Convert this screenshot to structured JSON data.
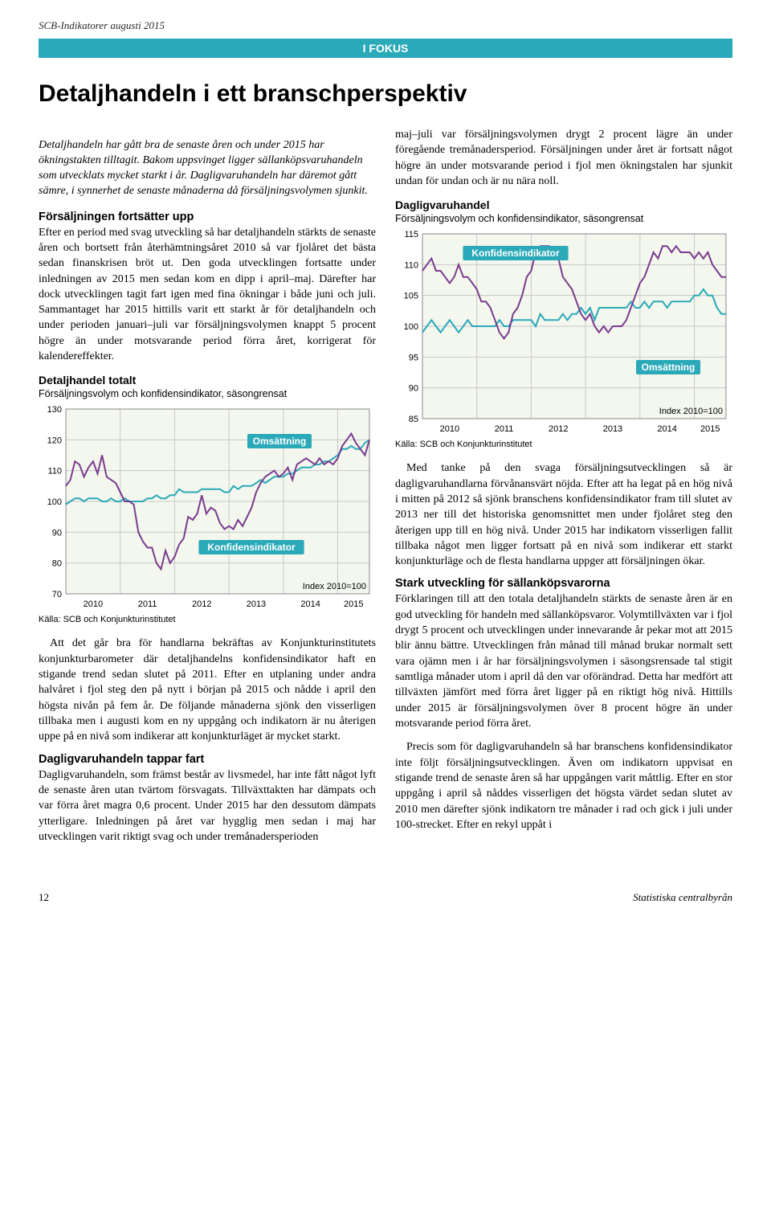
{
  "running_head": "SCB-Indikatorer augusti 2015",
  "fokus_label": "I FOKUS",
  "title": "Detaljhandeln i ett branschperspektiv",
  "footer": {
    "page_no": "12",
    "publisher": "Statistiska centralbyrån"
  },
  "left": {
    "intro": "Detaljhandeln har gått bra de senaste åren och under 2015 har ökningstakten tilltagit. Bakom uppsvinget ligger sällanköpsvaruhandeln som utvecklats mycket starkt i år. Dagligvaruhandeln har däremot gått sämre, i synnerhet de senaste månaderna då försäljningsvolymen sjunkit.",
    "h1": "Försäljningen fortsätter upp",
    "p1": "Efter en period med svag utveckling så har detaljhandeln stärkts de senaste åren och bortsett från återhämtningsåret 2010 så var fjolåret det bästa sedan finanskrisen bröt ut. Den goda utvecklingen fortsatte under inledningen av 2015 men sedan kom en dipp i april–maj. Därefter har dock utvecklingen tagit fart igen med fina ökningar i både juni och juli. Sammantaget har 2015 hittills varit ett starkt år för detaljhandeln och under perioden januari–juli var försäljningsvolymen knappt 5 procent högre än under motsvarande period förra året, korrigerat för kalendereffekter.",
    "p2": "Att det går bra för handlarna bekräftas av Konjunkturinstitutets konjunkturbarometer där detaljhandelns konfidensindikator haft en stigande trend sedan slutet på 2011. Efter en utplaning under andra halvåret i fjol steg den på nytt i början på 2015 och nådde i april den högsta nivån på fem år. De följande månaderna sjönk den visserligen tillbaka men i augusti kom en ny uppgång och indikatorn är nu återigen uppe på en nivå som indikerar att konjunkturläget är mycket starkt.",
    "h2": "Dagligvaruhandeln tappar fart",
    "p3": "Dagligvaruhandeln, som främst består av livsmedel, har inte fått något lyft de senaste åren utan tvärtom försvagats. Tillväxttakten har dämpats och var förra året magra 0,6 procent. Under 2015 har den dessutom dämpats ytterligare. Inledningen på året var hygglig men sedan i maj har utvecklingen varit riktigt svag och under tremånadersperioden"
  },
  "right": {
    "p0": "maj–juli var försäljningsvolymen drygt 2 procent lägre än under föregående tremånadersperiod. Försäljningen under året är fortsatt något högre än under motsvarande period i fjol men ökningstalen har sjunkit undan för undan och är nu nära noll.",
    "p1": "Med tanke på den svaga försäljningsutvecklingen så är dagligvaruhandlarna förvånansvärt nöjda. Efter att ha legat på en hög nivå i mitten på 2012 så sjönk branschens konfi­densindikator fram till slutet av 2013 ner till det historiska genomsnittet men under fjolåret steg den återigen upp till en hög nivå. Under 2015 har indikatorn visserligen fallit tillbaka något men ligger fortsatt på en nivå som indikerar ett starkt konjunkturläge och de flesta handlarna uppger att försäljningen ökar.",
    "h1": "Stark utveckling för sällanköpsvarorna",
    "p2": "Förklaringen till att den totala detaljhandeln stärkts de senaste åren är en god utveckling för handeln med sällanköpsvaror. Volymtillväxten var i fjol drygt 5 procent och utvecklingen under innevarande år pekar mot att 2015 blir ännu bättre. Utvecklingen från månad till månad brukar normalt sett vara ojämn men i år har försäljningsvolymen i säsongsrensade tal stigit samtliga månader utom i april då den var oförändrad. Detta har medfört att tillväxten jämfört med förra året ligger på en riktigt hög nivå. Hittills under 2015 är försäljningsvolymen över 8 procent högre än under motsvarande period förra året.",
    "p3": "Precis som för dagligvaruhandeln så har branschens konfidensindikator inte följt försäljningsutvecklingen. Även om indikatorn uppvisat en stigande trend de senaste åren så har uppgången varit måttlig. Efter en stor uppgång i april så nåddes visserligen det högsta värdet sedan slutet av 2010 men därefter sjönk indikatorn tre månader i rad och gick i juli under 100-strecket. Efter en rekyl uppåt i"
  },
  "chart1": {
    "title": "Detaljhandel totalt",
    "sub": "Försäljningsvolym och konfidensindikator, säsongrensat",
    "index_note": "Index 2010=100",
    "source": "Källa: SCB och Konjunkturinstitutet",
    "type": "line",
    "background_color": "#f3f7ee",
    "grid_color": "#c9c9c9",
    "series1_color": "#2aa9b8",
    "series2_color": "#7a3b8e",
    "label_bg": "#2aa9b8",
    "label_fg": "#ffffff",
    "label1": "Omsättning",
    "label2": "Konfidensindikator",
    "ylim": [
      70,
      130
    ],
    "ytick_step": 10,
    "x_labels": [
      "2010",
      "2011",
      "2012",
      "2013",
      "2014",
      "2015"
    ],
    "x_months": 68,
    "series_omsattning": [
      99,
      100,
      101,
      101,
      100,
      101,
      101,
      101,
      100,
      100,
      101,
      100,
      100,
      101,
      100,
      100,
      100,
      100,
      101,
      101,
      102,
      101,
      101,
      102,
      102,
      104,
      103,
      103,
      103,
      103,
      104,
      104,
      104,
      104,
      104,
      103,
      103,
      105,
      104,
      105,
      105,
      105,
      106,
      107,
      106,
      107,
      108,
      108,
      108,
      109,
      109,
      110,
      111,
      111,
      111,
      112,
      112,
      113,
      113,
      114,
      115,
      117,
      117,
      118,
      117,
      117,
      119,
      120
    ],
    "series_konfidens": [
      105,
      107,
      113,
      112,
      108,
      111,
      113,
      109,
      115,
      108,
      107,
      106,
      103,
      100,
      100,
      99,
      90,
      87,
      85,
      85,
      80,
      78,
      84,
      80,
      82,
      86,
      88,
      95,
      94,
      96,
      102,
      96,
      98,
      97,
      93,
      91,
      92,
      91,
      94,
      92,
      95,
      98,
      103,
      106,
      108,
      109,
      110,
      108,
      109,
      111,
      107,
      112,
      113,
      114,
      113,
      112,
      114,
      112,
      113,
      112,
      114,
      118,
      120,
      122,
      119,
      117,
      115,
      120
    ]
  },
  "chart2": {
    "title": "Dagligvaruhandel",
    "sub": "Försäljningsvolym och konfidensindikator, säsongrensat",
    "index_note": "Index 2010=100",
    "source": "Källa: SCB och Konjunkturinstitutet",
    "type": "line",
    "background_color": "#f3f7ee",
    "grid_color": "#c9c9c9",
    "series1_color": "#2aa9b8",
    "series2_color": "#7a3b8e",
    "label_bg": "#2aa9b8",
    "label_fg": "#ffffff",
    "label1": "Konfidensindikator",
    "label2": "Omsättning",
    "ylim": [
      85,
      115
    ],
    "ytick_step": 5,
    "x_labels": [
      "2010",
      "2011",
      "2012",
      "2013",
      "2014",
      "2015"
    ],
    "x_months": 68,
    "series_omsattning": [
      99,
      100,
      101,
      100,
      99,
      100,
      101,
      100,
      99,
      100,
      101,
      100,
      100,
      100,
      100,
      100,
      100,
      101,
      100,
      100,
      101,
      101,
      101,
      101,
      101,
      100,
      102,
      101,
      101,
      101,
      101,
      102,
      101,
      102,
      102,
      103,
      102,
      103,
      101,
      103,
      103,
      103,
      103,
      103,
      103,
      103,
      104,
      103,
      103,
      104,
      103,
      104,
      104,
      104,
      103,
      104,
      104,
      104,
      104,
      104,
      105,
      105,
      106,
      105,
      105,
      103,
      102,
      102
    ],
    "series_konfidens": [
      109,
      110,
      111,
      109,
      109,
      108,
      107,
      108,
      110,
      108,
      108,
      107,
      106,
      104,
      104,
      103,
      101,
      99,
      98,
      99,
      102,
      103,
      105,
      108,
      109,
      112,
      113,
      113,
      113,
      112,
      111,
      108,
      107,
      106,
      104,
      102,
      101,
      102,
      100,
      99,
      100,
      99,
      100,
      100,
      100,
      101,
      103,
      105,
      107,
      108,
      110,
      112,
      111,
      113,
      113,
      112,
      113,
      112,
      112,
      112,
      111,
      112,
      111,
      112,
      110,
      109,
      108,
      108
    ]
  }
}
